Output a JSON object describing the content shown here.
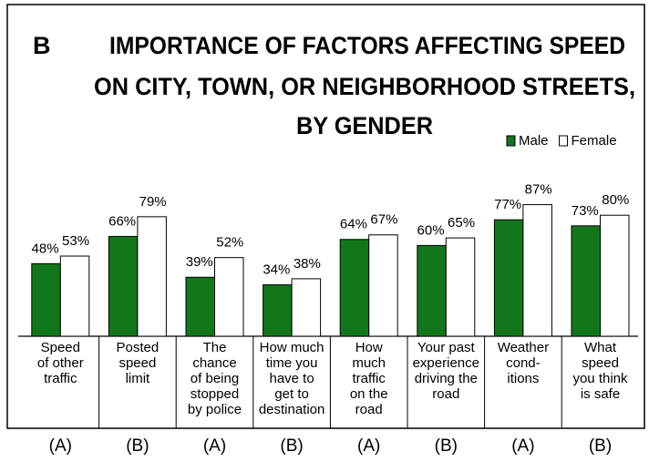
{
  "chart_data": {
    "type": "bar",
    "panel_label": "B",
    "title": [
      "IMPORTANCE OF FACTORS AFFECTING SPEED",
      "ON CITY, TOWN, OR NEIGHBORHOOD STREETS,",
      "BY GENDER"
    ],
    "categories": [
      [
        "Speed",
        "of other",
        "traffic"
      ],
      [
        "Posted",
        "speed",
        "limit"
      ],
      [
        "The",
        "chance",
        "of being",
        "stopped",
        "by police"
      ],
      [
        "How much",
        "time you",
        "have to",
        "get to",
        "destination"
      ],
      [
        "How",
        "much",
        "traffic",
        "on the",
        "road"
      ],
      [
        "Your past",
        "experience",
        "driving the",
        "road"
      ],
      [
        "Weather",
        "cond-",
        "itions"
      ],
      [
        "What",
        "speed",
        "you think",
        "is safe"
      ]
    ],
    "groups": [
      "(A)",
      "(B)",
      "(A)",
      "(B)",
      "(A)",
      "(B)",
      "(A)",
      "(B)"
    ],
    "series": [
      {
        "name": "Male",
        "color": "#11771a",
        "values": [
          48,
          66,
          39,
          34,
          64,
          60,
          77,
          73
        ],
        "value_labels": [
          "48%",
          "66%",
          "39%",
          "34%",
          "64%",
          "60%",
          "77%",
          "73%"
        ]
      },
      {
        "name": "Female",
        "color": "#ffffff",
        "values": [
          53,
          79,
          52,
          38,
          67,
          65,
          87,
          80
        ],
        "value_labels": [
          "53%",
          "79%",
          "52%",
          "38%",
          "67%",
          "65%",
          "87%",
          "80%"
        ]
      }
    ],
    "legend": "top-right"
  }
}
